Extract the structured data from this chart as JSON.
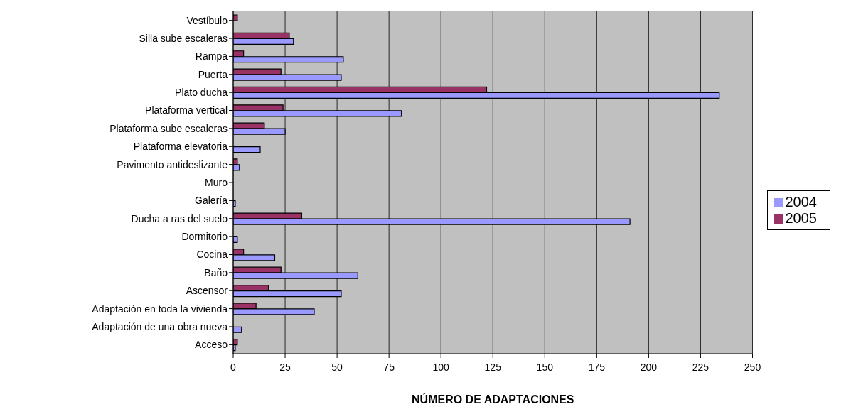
{
  "chart_data": {
    "type": "bar",
    "orientation": "horizontal",
    "xlabel": "NÚMERO DE ADAPTACIONES",
    "categories": [
      "Vestíbulo",
      "Silla sube escaleras",
      "Rampa",
      "Puerta",
      "Plato ducha",
      "Plataforma vertical",
      "Plataforma sube escaleras",
      "Plataforma elevatoria",
      "Pavimento antideslizante",
      "Muro",
      "Galería",
      "Ducha a ras del suelo",
      "Dormitorio",
      "Cocina",
      "Baño",
      "Ascensor",
      "Adaptación en toda la vivienda",
      "Adaptación de una obra nueva",
      "Acceso"
    ],
    "series": [
      {
        "name": "2005",
        "color": "#993366",
        "values": [
          2,
          27,
          5,
          23,
          122,
          24,
          15,
          0,
          2,
          0,
          0,
          33,
          0,
          5,
          23,
          17,
          11,
          0,
          2
        ]
      },
      {
        "name": "2004",
        "color": "#9999ff",
        "values": [
          0,
          29,
          53,
          52,
          234,
          81,
          25,
          13,
          3,
          0,
          1,
          191,
          2,
          20,
          60,
          52,
          39,
          4,
          1
        ]
      }
    ],
    "xlim": [
      0,
      250
    ],
    "xticks": [
      0,
      25,
      50,
      75,
      100,
      125,
      150,
      175,
      200,
      225,
      250
    ],
    "grid": "x",
    "legend": "right"
  }
}
